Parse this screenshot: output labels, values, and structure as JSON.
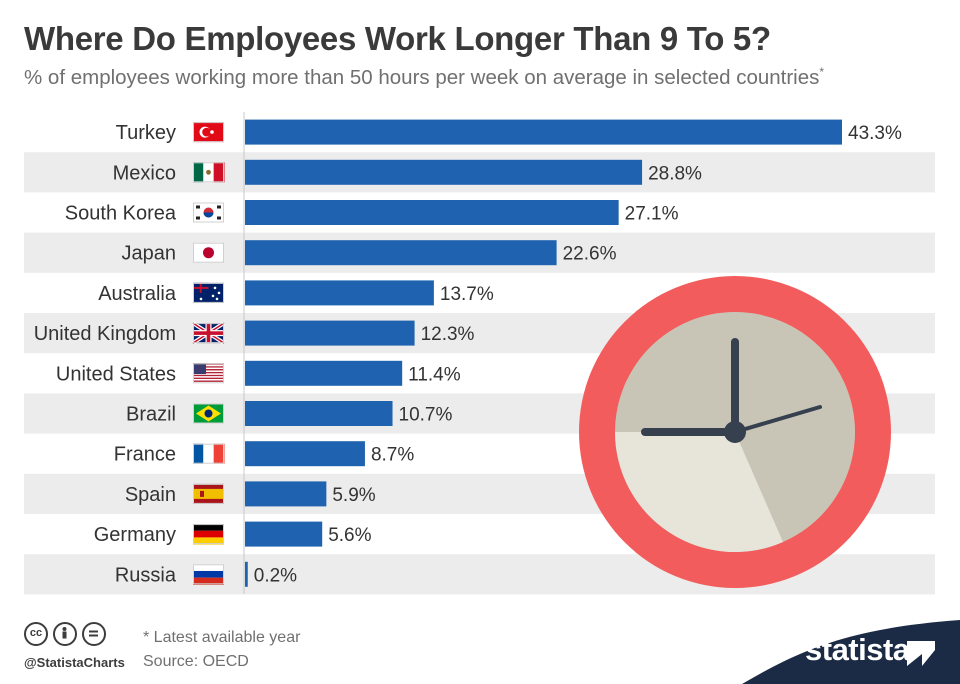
{
  "header": {
    "title": "Where Do Employees Work Longer Than 9 To 5?",
    "subtitle": "% of employees working more than 50 hours per week on average in selected countries",
    "subtitle_mark": "*"
  },
  "chart_data": {
    "type": "bar",
    "orientation": "horizontal",
    "title": "Where Do Employees Work Longer Than 9 To 5?",
    "xlabel": "",
    "ylabel": "",
    "categories": [
      "Turkey",
      "Mexico",
      "South Korea",
      "Japan",
      "Australia",
      "United Kingdom",
      "United States",
      "Brazil",
      "France",
      "Spain",
      "Germany",
      "Russia"
    ],
    "values": [
      43.3,
      28.8,
      27.1,
      22.6,
      13.7,
      12.3,
      11.4,
      10.7,
      8.7,
      5.9,
      5.6,
      0.2
    ],
    "value_labels": [
      "43.3%",
      "28.8%",
      "27.1%",
      "22.6%",
      "13.7%",
      "12.3%",
      "11.4%",
      "10.7%",
      "8.7%",
      "5.9%",
      "5.6%",
      "0.2%"
    ],
    "xlim": [
      0,
      45
    ],
    "bar_color": "#1f63b0",
    "stripe_color": "#ececec",
    "grid": false
  },
  "footer": {
    "note": "* Latest available year",
    "source": "Source: OECD",
    "handle": "@StatistaCharts",
    "brand": "statista",
    "cc_icons": [
      "cc-icon",
      "attribution-icon",
      "no-derivatives-icon"
    ]
  },
  "colors": {
    "clock_ring": "#f25c5c",
    "clock_face": "#c9c5b6",
    "clock_face_light": "#e7e4da",
    "clock_hand": "#36404f",
    "brand_bg": "#1c2b45"
  }
}
